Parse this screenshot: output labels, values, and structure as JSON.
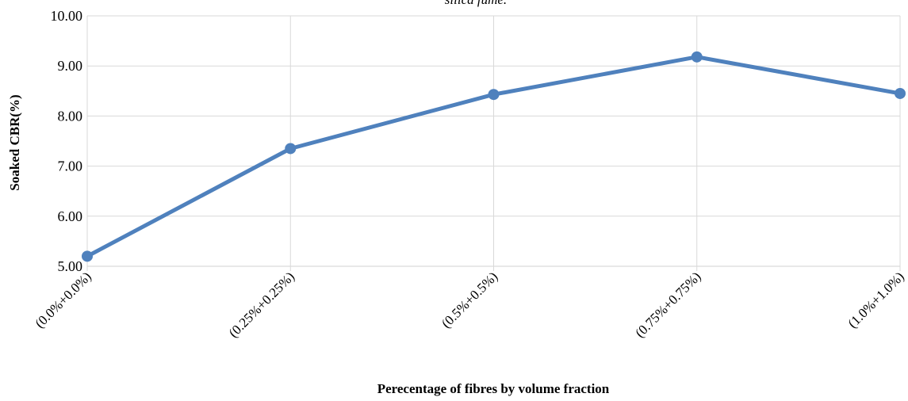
{
  "chart_data": {
    "type": "line",
    "title": "silica fume.",
    "xlabel": "Perecentage of fibres by volume fraction",
    "ylabel": "Soaked CBR(%)",
    "categories": [
      "(0.0%+0.0%)",
      "(0.25%+0.25%)",
      "(0.5%+0.5%)",
      "(0.75%+0.75%)",
      "(1.0%+1.0%)"
    ],
    "series": [
      {
        "values": [
          5.2,
          7.35,
          8.43,
          9.18,
          8.45
        ]
      }
    ],
    "ylim": [
      5.0,
      10.0
    ],
    "yticks": [
      "5.00",
      "6.00",
      "7.00",
      "8.00",
      "9.00",
      "10.00"
    ],
    "grid": true,
    "legend": "none",
    "colors": {
      "line": "#4f81bd",
      "grid": "#d9d9d9"
    }
  }
}
